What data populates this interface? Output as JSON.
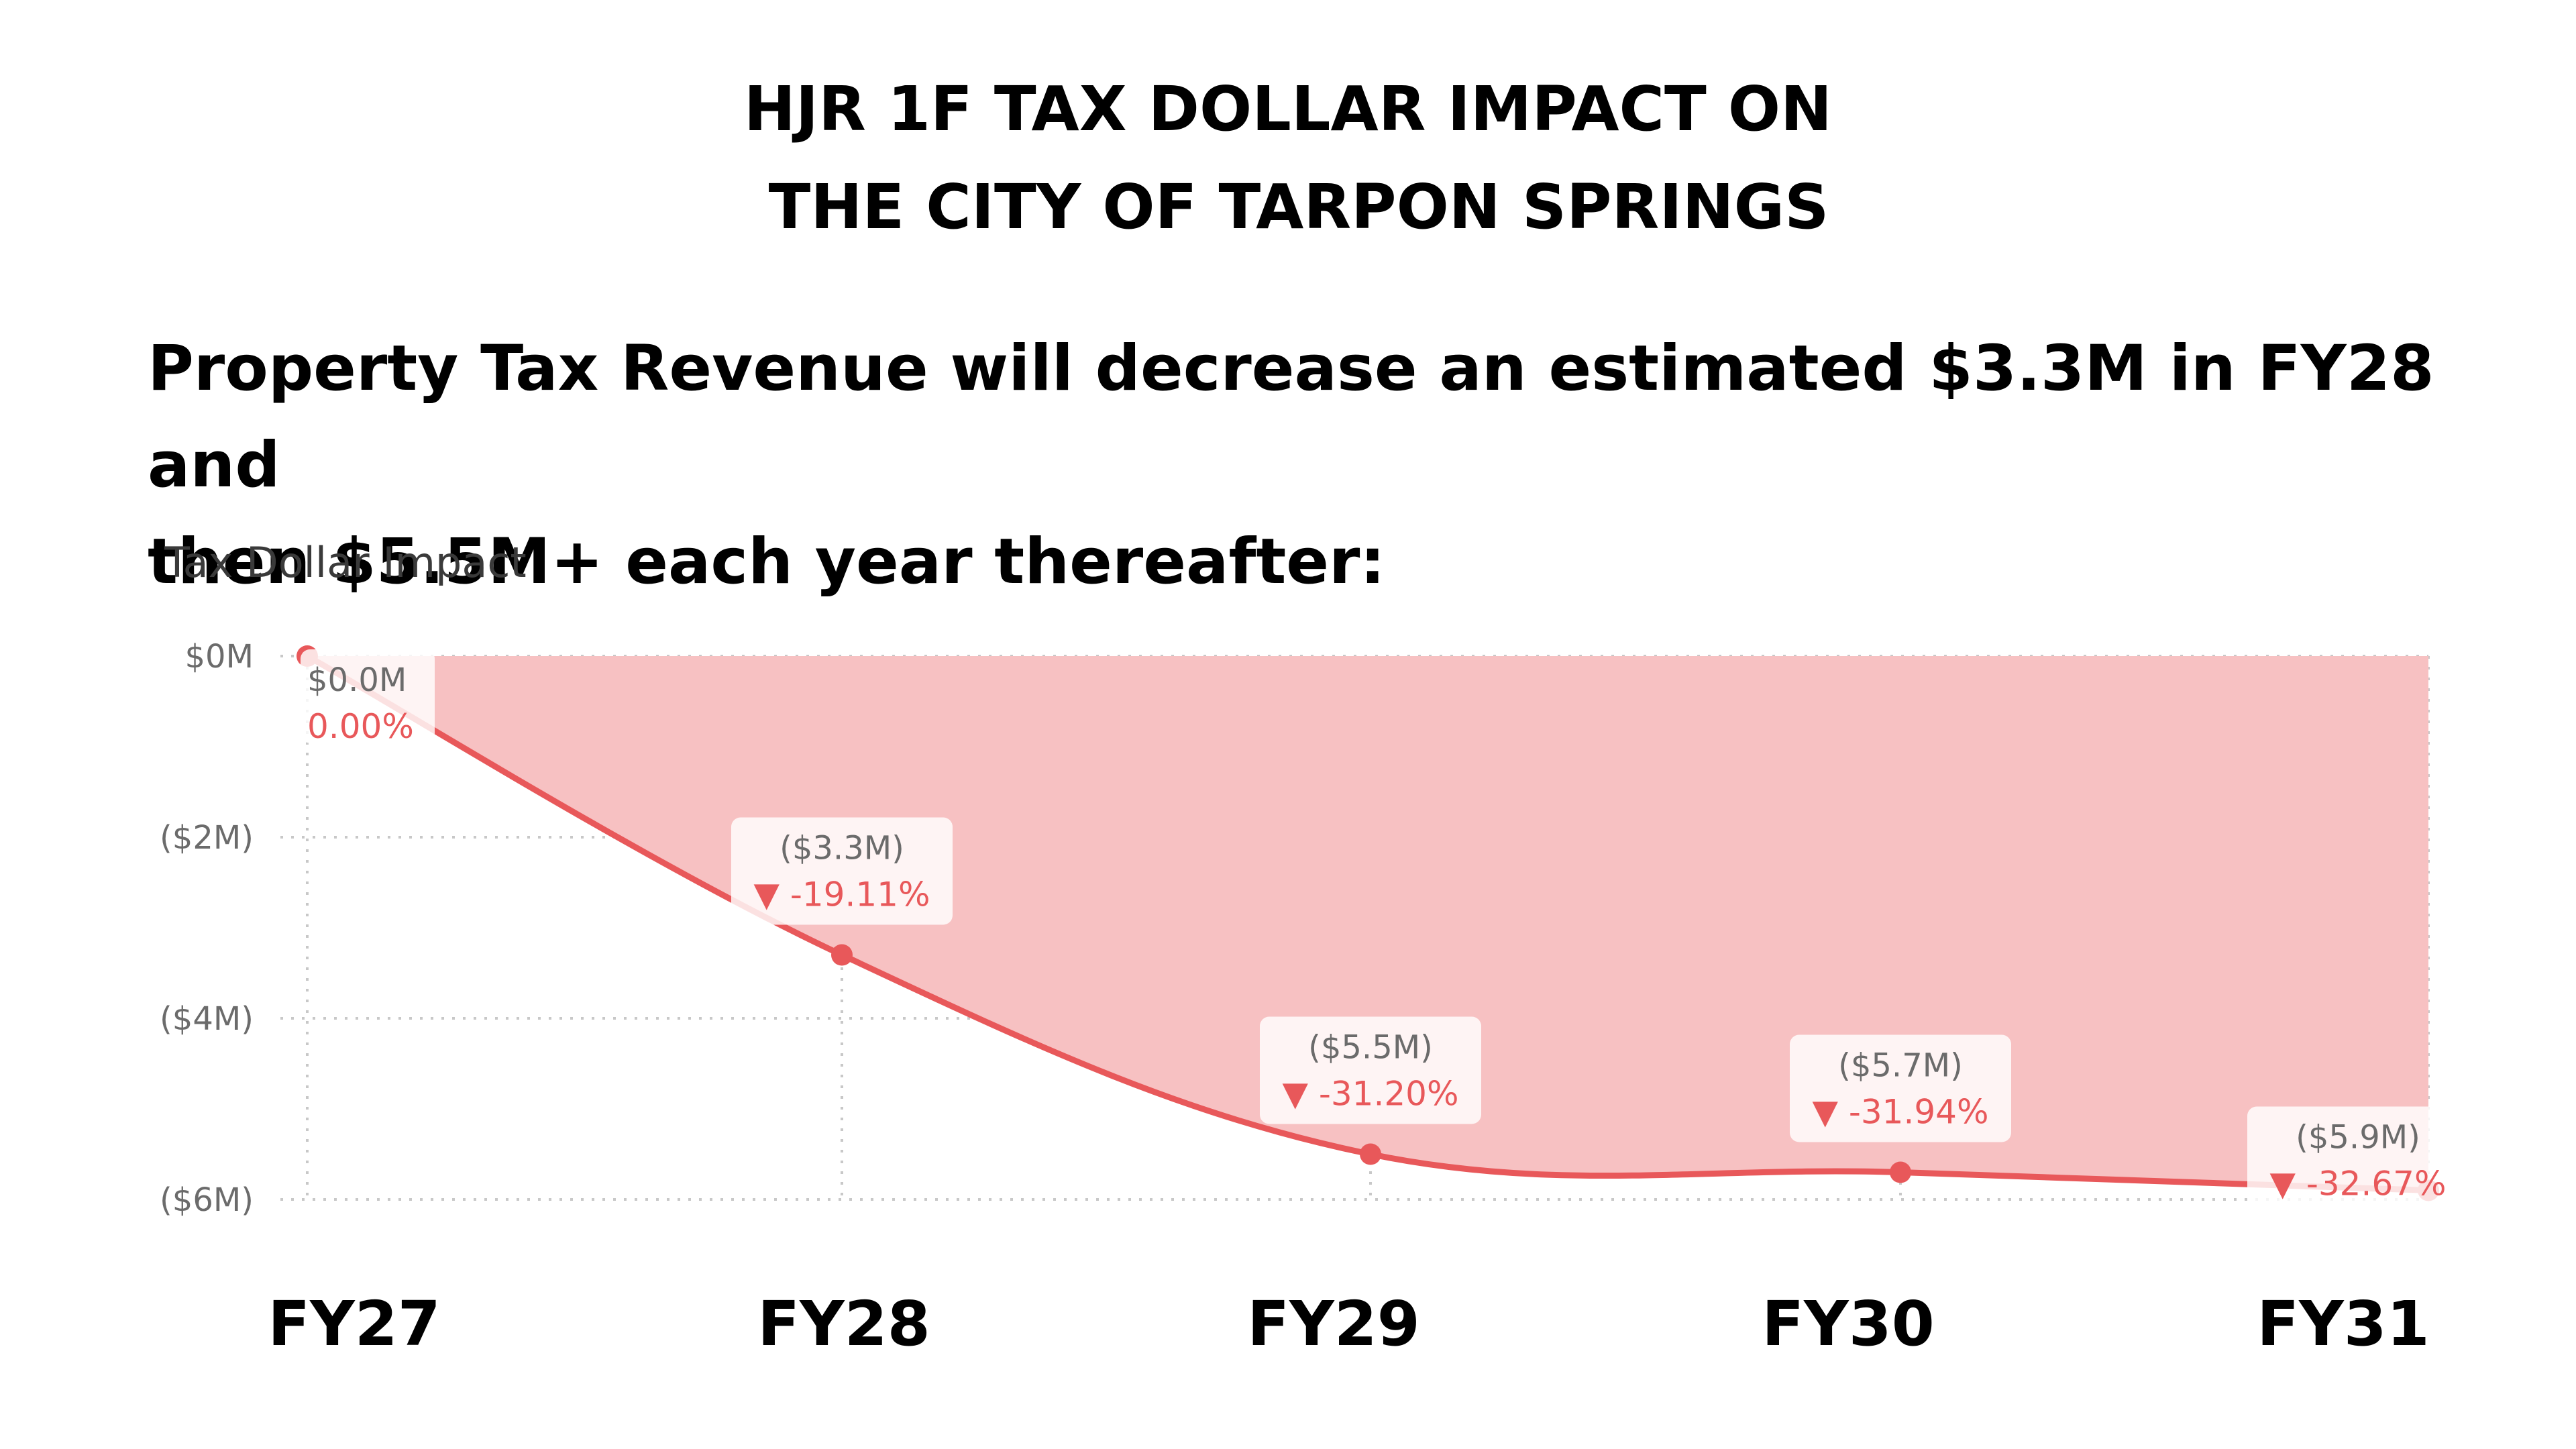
{
  "header": {
    "title_line1": "HJR 1F TAX DOLLAR IMPACT ON",
    "title_line2": " THE CITY OF TARPON SPRINGS",
    "headline_line1": "Property Tax Revenue will decrease an estimated $3.3M in FY28 and",
    "headline_line2": "then $5.5M+ each year thereafter:"
  },
  "colors": {
    "line": "#e8585a",
    "area": "#f7c1c2",
    "pct_text": "#e8585a",
    "grid": "#c8c8c8"
  },
  "chart_data": {
    "type": "area",
    "title": "Tax Dollar Impact",
    "categories": [
      "FY27",
      "FY28",
      "FY29",
      "FY30",
      "FY31"
    ],
    "series": [
      {
        "values": [
          0.0,
          -3.3,
          -5.5,
          -5.7,
          -5.9
        ],
        "value_labels": [
          "$0.0M",
          "($3.3M)",
          "($5.5M)",
          "($5.7M)",
          "($5.9M)"
        ],
        "pct_labels": [
          "0.00%",
          "-19.11%",
          "-31.20%",
          "-31.94%",
          "-32.67%"
        ],
        "trend_marker": [
          "",
          "▼",
          "▼",
          "▼",
          "▼"
        ]
      }
    ],
    "y_ticks": [
      0,
      -2,
      -4,
      -6
    ],
    "y_tick_labels": [
      "$0M",
      "($2M)",
      "($4M)",
      "($6M)"
    ],
    "ylim": [
      -6,
      0
    ],
    "grid": true,
    "grid_style": "dotted"
  }
}
